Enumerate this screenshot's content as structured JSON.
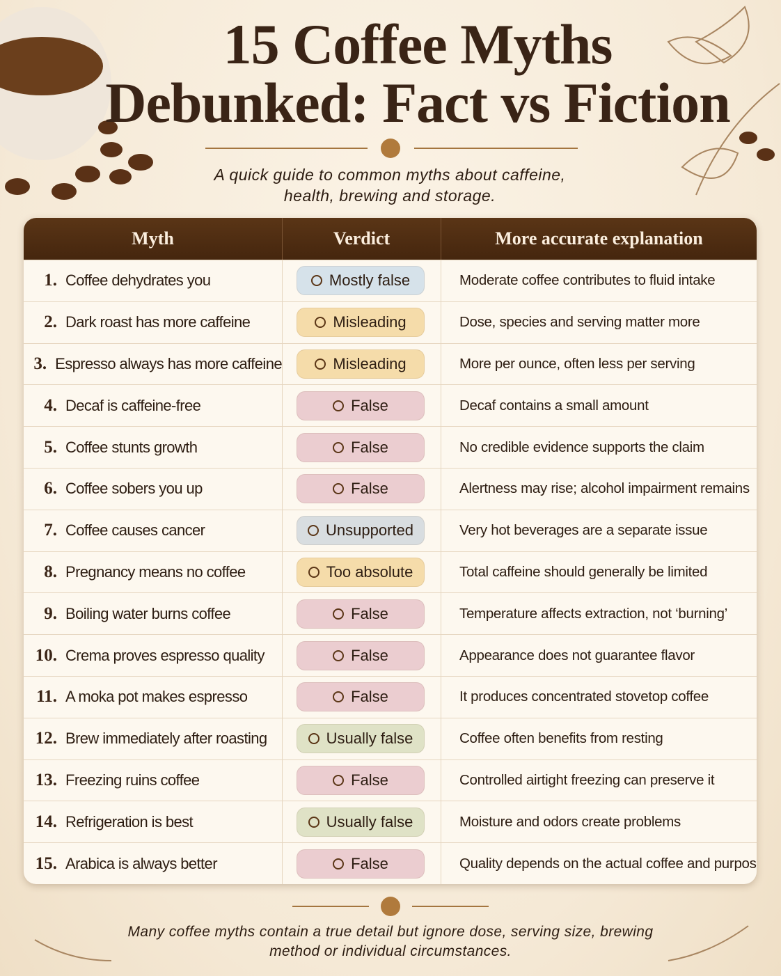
{
  "header": {
    "title": "15 Coffee Myths Debunked: Fact vs Fiction",
    "subtitle": "A quick guide to common myths about caffeine, health, brewing and storage."
  },
  "table": {
    "columns": [
      "Myth",
      "Verdict",
      "More accurate explanation"
    ],
    "rows": [
      {
        "number": "1.",
        "myth": "Coffee dehydrates you",
        "verdict": "Mostly false",
        "color": "#d6e2ea",
        "explanation": "Moderate coffee contributes to fluid intake"
      },
      {
        "number": "2.",
        "myth": "Dark roast has more caffeine",
        "verdict": "Misleading",
        "color": "#f5dcaa",
        "explanation": "Dose, species and serving matter more"
      },
      {
        "number": "3.",
        "myth": "Espresso always has more caffeine",
        "verdict": "Misleading",
        "color": "#f5dcaa",
        "explanation": "More per ounce, often less per serving"
      },
      {
        "number": "4.",
        "myth": "Decaf is caffeine-free",
        "verdict": "False",
        "color": "#ebcdd0",
        "explanation": "Decaf contains a small amount"
      },
      {
        "number": "5.",
        "myth": "Coffee stunts growth",
        "verdict": "False",
        "color": "#ebcdd0",
        "explanation": "No credible evidence supports the claim"
      },
      {
        "number": "6.",
        "myth": "Coffee sobers you up",
        "verdict": "False",
        "color": "#ebcdd0",
        "explanation": "Alertness may rise; alcohol impairment remains"
      },
      {
        "number": "7.",
        "myth": "Coffee causes cancer",
        "verdict": "Unsupported",
        "color": "#d8dde0",
        "explanation": "Very hot beverages are a separate issue"
      },
      {
        "number": "8.",
        "myth": "Pregnancy means no coffee",
        "verdict": "Too absolute",
        "color": "#f5dcaa",
        "explanation": "Total caffeine should generally be limited"
      },
      {
        "number": "9.",
        "myth": "Boiling water burns coffee",
        "verdict": "False",
        "color": "#ebcdd0",
        "explanation": "Temperature affects extraction, not ‘burning’"
      },
      {
        "number": "10.",
        "myth": "Crema proves espresso quality",
        "verdict": "False",
        "color": "#ebcdd0",
        "explanation": "Appearance does not guarantee flavor"
      },
      {
        "number": "11.",
        "myth": "A moka pot makes espresso",
        "verdict": "False",
        "color": "#ebcdd0",
        "explanation": "It produces concentrated stovetop coffee"
      },
      {
        "number": "12.",
        "myth": "Brew immediately after roasting",
        "verdict": "Usually false",
        "color": "#dfe2c6",
        "explanation": "Coffee often benefits from resting"
      },
      {
        "number": "13.",
        "myth": "Freezing ruins coffee",
        "verdict": "False",
        "color": "#ebcdd0",
        "explanation": "Controlled airtight freezing can preserve it"
      },
      {
        "number": "14.",
        "myth": "Refrigeration is best",
        "verdict": "Usually false",
        "color": "#dfe2c6",
        "explanation": "Moisture and odors create problems"
      },
      {
        "number": "15.",
        "myth": "Arabica is always better",
        "verdict": "False",
        "color": "#ebcdd0",
        "explanation": "Quality depends on the actual coffee and purpose"
      }
    ]
  },
  "footer": {
    "note": "Many coffee myths contain a true detail but ignore dose, serving size, brewing method or individual circumstances."
  }
}
